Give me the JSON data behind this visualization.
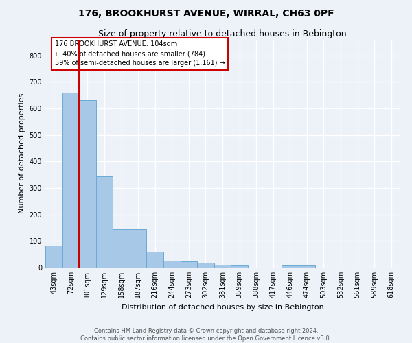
{
  "title": "176, BROOKHURST AVENUE, WIRRAL, CH63 0PF",
  "subtitle": "Size of property relative to detached houses in Bebington",
  "xlabel": "Distribution of detached houses by size in Bebington",
  "ylabel": "Number of detached properties",
  "categories": [
    "43sqm",
    "72sqm",
    "101sqm",
    "129sqm",
    "158sqm",
    "187sqm",
    "216sqm",
    "244sqm",
    "273sqm",
    "302sqm",
    "331sqm",
    "359sqm",
    "388sqm",
    "417sqm",
    "446sqm",
    "474sqm",
    "503sqm",
    "532sqm",
    "561sqm",
    "589sqm",
    "618sqm"
  ],
  "values": [
    82,
    660,
    630,
    345,
    145,
    145,
    60,
    25,
    22,
    18,
    10,
    7,
    0,
    0,
    8,
    8,
    0,
    0,
    0,
    0,
    0
  ],
  "bar_color": "#a8c8e8",
  "bar_edge_color": "#6aaad4",
  "red_line_index": 2,
  "annotation_text": "176 BROOKHURST AVENUE: 104sqm\n← 40% of detached houses are smaller (784)\n59% of semi-detached houses are larger (1,161) →",
  "box_color": "#cc0000",
  "ylim": [
    0,
    860
  ],
  "yticks": [
    0,
    100,
    200,
    300,
    400,
    500,
    600,
    700,
    800
  ],
  "footer_line1": "Contains HM Land Registry data © Crown copyright and database right 2024.",
  "footer_line2": "Contains public sector information licensed under the Open Government Licence v3.0.",
  "bg_color": "#edf2f9",
  "grid_color": "#ffffff",
  "title_fontsize": 10,
  "subtitle_fontsize": 9,
  "ylabel_fontsize": 8,
  "xlabel_fontsize": 8,
  "tick_fontsize": 7,
  "annotation_fontsize": 7,
  "footer_fontsize": 6
}
